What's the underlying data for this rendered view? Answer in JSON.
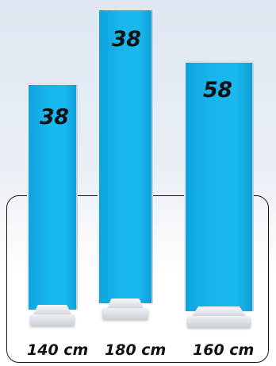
{
  "banners": [
    {
      "badge": "38",
      "height_label": "140 cm"
    },
    {
      "badge": "38",
      "height_label": "180 cm"
    },
    {
      "badge": "58",
      "height_label": "160 cm"
    }
  ]
}
